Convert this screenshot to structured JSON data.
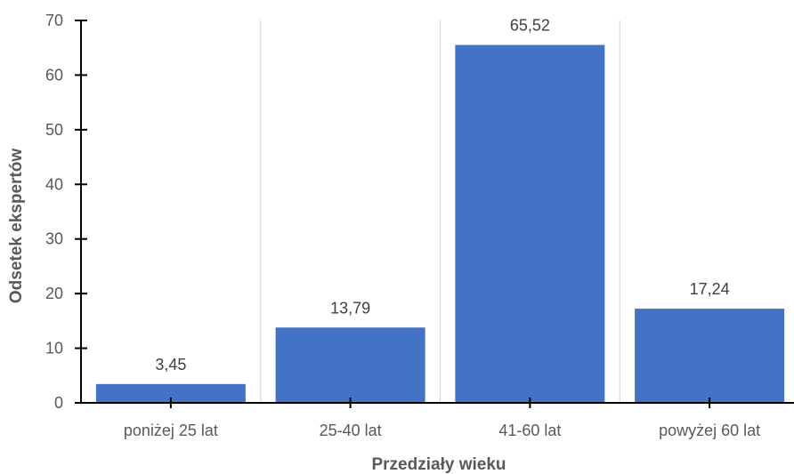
{
  "chart_data": {
    "type": "bar",
    "title": "",
    "xlabel": "Przedziały wieku",
    "ylabel": "Odsetek ekspertów",
    "categories": [
      "poniżej 25 lat",
      "25-40 lat",
      "41-60 lat",
      "powyżej 60 lat"
    ],
    "values": [
      3.45,
      13.79,
      65.52,
      17.24
    ],
    "value_labels": [
      "3,45",
      "13,79",
      "65,52",
      "17,24"
    ],
    "ylim": [
      0,
      70
    ],
    "yticks": [
      0,
      10,
      20,
      30,
      40,
      50,
      60,
      70
    ],
    "grid": "vertical",
    "legend": "none",
    "colors": {
      "bar": "#4472C4",
      "grid": "#D9D9D9",
      "axis": "#000000",
      "text": "#595959"
    }
  }
}
